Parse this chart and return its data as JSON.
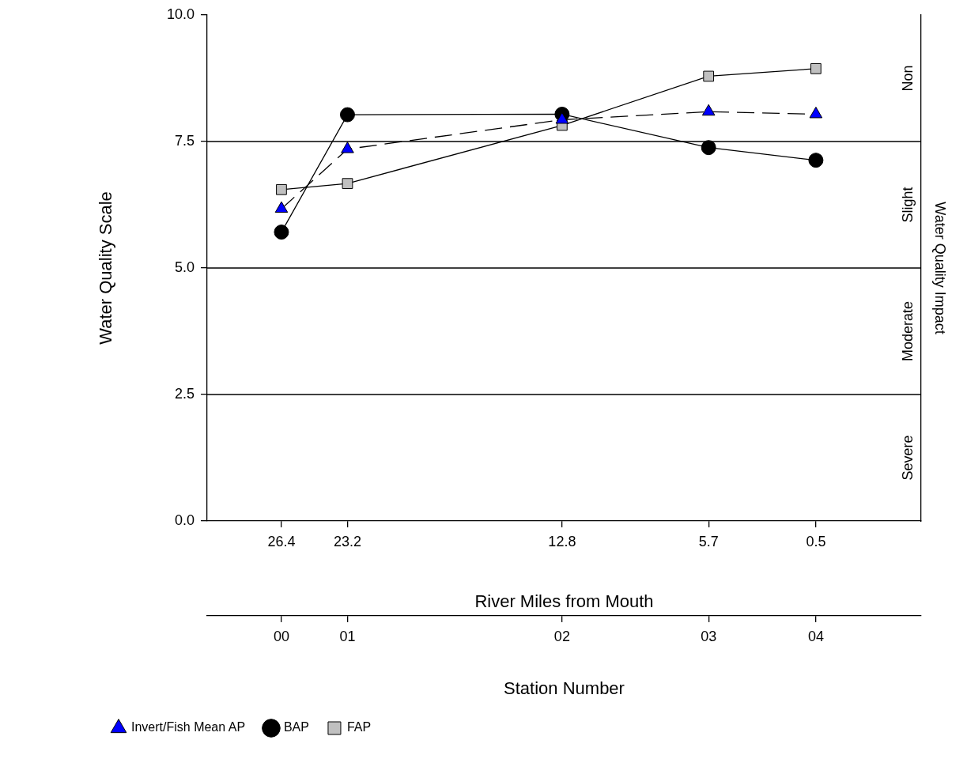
{
  "chart_data": {
    "type": "line",
    "xlabel": "River Miles from Mouth",
    "ylabel": "Water Quality Scale",
    "y2label": "Water Quality Impact",
    "x2label": "Station Number",
    "x": [
      26.4,
      23.2,
      12.8,
      5.7,
      0.5
    ],
    "xlim": [
      30,
      -4.6
    ],
    "xticks": [
      26.4,
      23.2,
      12.8,
      5.7,
      0.5
    ],
    "ylim": [
      0,
      10
    ],
    "yticks": [
      {
        "value": 0,
        "label": "0.0"
      },
      {
        "value": 2.5,
        "label": "2.5"
      },
      {
        "value": 5,
        "label": "5.0"
      },
      {
        "value": 7.5,
        "label": "7.5"
      },
      {
        "value": 10,
        "label": "10.0"
      }
    ],
    "series": [
      {
        "name": "Invert/Fish Mean AP",
        "color": "#0000ff",
        "marker": "triangle",
        "line_style": "dashed",
        "values": [
          6.17,
          7.35,
          7.93,
          8.09,
          8.04
        ]
      },
      {
        "name": "BAP",
        "color": "#000000",
        "marker": "circle",
        "line_style": "solid",
        "values": [
          5.71,
          8.03,
          8.04,
          7.38,
          7.13
        ]
      },
      {
        "name": "FAP",
        "color": "#c0c0c0",
        "marker": "square",
        "line_style": "solid",
        "values": [
          6.55,
          6.67,
          7.82,
          8.79,
          8.94
        ]
      }
    ],
    "ref_lines": [
      {
        "axis": "y",
        "value": 7.5
      },
      {
        "axis": "y",
        "value": 5
      },
      {
        "axis": "y",
        "value": 2.5
      }
    ],
    "annotations": [
      "Non",
      "Slight",
      "Moderate",
      "Severe",
      {
        "text": "00",
        "x": 26.4
      },
      {
        "text": "01",
        "x": 23.2
      },
      {
        "text": "02",
        "x": 12.8
      },
      {
        "text": "03",
        "x": 5.7
      },
      {
        "text": "04",
        "x": 0.5
      }
    ],
    "grid": false,
    "legend": "bottom left"
  }
}
